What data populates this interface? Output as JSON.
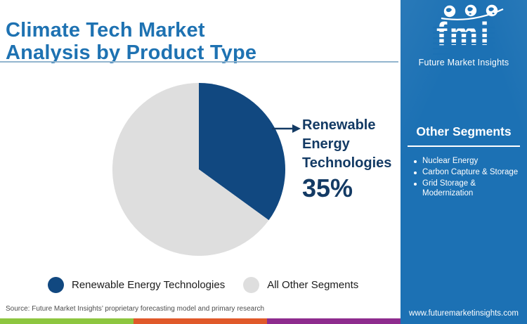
{
  "header": {
    "title_line1": "Climate Tech Market",
    "title_line2": "Analysis by Product Type"
  },
  "chart_data": {
    "type": "pie",
    "title": "Climate Tech Market Analysis by Product Type",
    "slices": [
      {
        "label": "Renewable Energy Technologies",
        "value": 35,
        "color": "#114880"
      },
      {
        "label": "All Other Segments",
        "value": 65,
        "color": "#DEDEDE"
      }
    ],
    "start_angle_deg": 0,
    "direction": "clockwise",
    "legend_position": "bottom",
    "callout": {
      "lines": [
        "Renewable",
        "Energy",
        "Technologies"
      ],
      "value": "35%"
    }
  },
  "sidebar": {
    "logo": {
      "text": "fmi",
      "subtitle": "Future Market Insights"
    },
    "other_segments": {
      "heading": "Other Segments",
      "items": [
        "Nuclear Energy",
        "Carbon Capture & Storage",
        "Grid Storage & Modernization"
      ]
    },
    "website": "www.futuremarketinsights.com"
  },
  "source": "Source: Future Market Insights’ proprietary forecasting model and primary research",
  "colors": {
    "title_blue": "#1E72B2",
    "sidebar_blue": "#1C71B4",
    "callout_navy": "#133A64",
    "legend_text": "#1C1C1C",
    "source_text": "#4D4D4D",
    "divider": "#93B5CE",
    "stripe_green": "#8DC63F",
    "stripe_orange": "#E0592A",
    "stripe_purple": "#8E2C8E"
  }
}
